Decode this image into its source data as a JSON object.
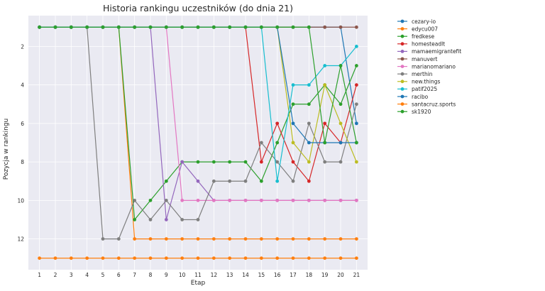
{
  "chart_data": {
    "type": "line",
    "title": "Historia rankingu uczestników (do dnia 21)",
    "xlabel": "Etap",
    "ylabel": "Pozycja w rankingu",
    "x": [
      1,
      2,
      3,
      4,
      5,
      6,
      7,
      8,
      9,
      10,
      11,
      12,
      13,
      14,
      15,
      16,
      17,
      18,
      19,
      20,
      21
    ],
    "x_ticks": [
      "1",
      "2",
      "3",
      "4",
      "5",
      "6",
      "7",
      "8",
      "9",
      "10",
      "11",
      "12",
      "13",
      "14",
      "15",
      "16",
      "17",
      "18",
      "19",
      "20",
      "21"
    ],
    "y_ticks": [
      "2",
      "4",
      "6",
      "8",
      "10",
      "12"
    ],
    "ylim": [
      13.6,
      0.4
    ],
    "y_inverted": true,
    "grid": true,
    "legend_position": "outside-right",
    "series": [
      {
        "name": "cezary-io",
        "color": "#1f77b4",
        "values": [
          1,
          1,
          1,
          1,
          1,
          1,
          1,
          1,
          1,
          1,
          1,
          1,
          1,
          1,
          1,
          1,
          1,
          1,
          1,
          1,
          6
        ]
      },
      {
        "name": "edycu007",
        "color": "#ff7f0e",
        "values": [
          1,
          1,
          1,
          1,
          1,
          1,
          12,
          12,
          12,
          12,
          12,
          12,
          12,
          12,
          12,
          12,
          12,
          12,
          12,
          12,
          12
        ]
      },
      {
        "name": "fredkese",
        "color": "#2ca02c",
        "values": [
          1,
          1,
          1,
          1,
          1,
          1,
          11,
          10,
          9,
          8,
          8,
          8,
          8,
          8,
          9,
          7,
          5,
          5,
          4,
          5,
          3
        ]
      },
      {
        "name": "homesteadlt",
        "color": "#d62728",
        "values": [
          1,
          1,
          1,
          1,
          1,
          1,
          1,
          1,
          1,
          1,
          1,
          1,
          1,
          1,
          8,
          6,
          8,
          9,
          6,
          7,
          4
        ]
      },
      {
        "name": "mamaemigrantefit",
        "color": "#9467bd",
        "values": [
          1,
          1,
          1,
          1,
          1,
          1,
          1,
          1,
          11,
          8,
          9,
          10,
          10,
          10,
          10,
          10,
          10,
          10,
          10,
          10,
          10
        ]
      },
      {
        "name": "manuvert",
        "color": "#8c564b",
        "values": [
          1,
          1,
          1,
          1,
          1,
          1,
          1,
          1,
          1,
          1,
          1,
          1,
          1,
          1,
          1,
          1,
          1,
          1,
          1,
          1,
          1
        ]
      },
      {
        "name": "marianomariano",
        "color": "#e377c2",
        "values": [
          1,
          1,
          1,
          1,
          1,
          1,
          1,
          1,
          1,
          10,
          10,
          10,
          10,
          10,
          10,
          10,
          10,
          10,
          10,
          10,
          10
        ]
      },
      {
        "name": "merthin",
        "color": "#7f7f7f",
        "values": [
          1,
          1,
          1,
          1,
          12,
          12,
          10,
          11,
          10,
          11,
          11,
          9,
          9,
          9,
          7,
          8,
          9,
          6,
          8,
          8,
          5
        ]
      },
      {
        "name": "new.things",
        "color": "#bcbd22",
        "values": [
          1,
          1,
          1,
          1,
          1,
          1,
          1,
          1,
          1,
          1,
          1,
          1,
          1,
          1,
          1,
          1,
          7,
          8,
          4,
          6,
          8
        ]
      },
      {
        "name": "patif2025",
        "color": "#17becf",
        "values": [
          1,
          1,
          1,
          1,
          1,
          1,
          1,
          1,
          1,
          1,
          1,
          1,
          1,
          1,
          1,
          9,
          4,
          4,
          3,
          3,
          2
        ]
      },
      {
        "name": "racibo",
        "color": "#1f77b4",
        "values": [
          1,
          1,
          1,
          1,
          1,
          1,
          1,
          1,
          1,
          1,
          1,
          1,
          1,
          1,
          1,
          1,
          6,
          7,
          7,
          7,
          7
        ]
      },
      {
        "name": "santacruz.sports",
        "color": "#ff7f0e",
        "values": [
          13,
          13,
          13,
          13,
          13,
          13,
          13,
          13,
          13,
          13,
          13,
          13,
          13,
          13,
          13,
          13,
          13,
          13,
          13,
          13,
          13
        ]
      },
      {
        "name": "sk1920",
        "color": "#2ca02c",
        "values": [
          1,
          1,
          1,
          1,
          1,
          1,
          1,
          1,
          1,
          1,
          1,
          1,
          1,
          1,
          1,
          1,
          1,
          1,
          7,
          3,
          7
        ]
      }
    ]
  }
}
